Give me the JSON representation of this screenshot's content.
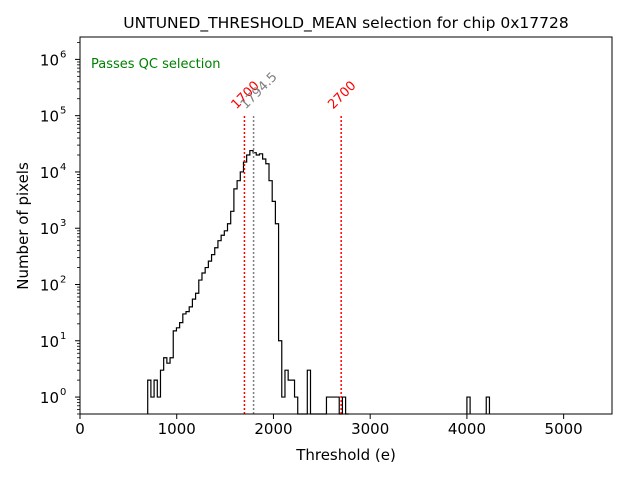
{
  "chart_data": {
    "type": "histogram",
    "title": "UNTUNED_THRESHOLD_MEAN selection for chip 0x17728",
    "xlabel": "Threshold (e)",
    "ylabel": "Number of pixels",
    "xlim": [
      0,
      5500
    ],
    "ylim": [
      0.5,
      2500000
    ],
    "yscale": "log",
    "xticks": [
      0,
      1000,
      2000,
      3000,
      4000,
      5000
    ],
    "xtick_labels": [
      "0",
      "1000",
      "2000",
      "3000",
      "4000",
      "5000"
    ],
    "yticks": [
      1,
      10,
      100,
      1000,
      10000,
      100000,
      1000000
    ],
    "ytick_labels": [
      {
        "base": "10",
        "exp": "0"
      },
      {
        "base": "10",
        "exp": "1"
      },
      {
        "base": "10",
        "exp": "2"
      },
      {
        "base": "10",
        "exp": "3"
      },
      {
        "base": "10",
        "exp": "4"
      },
      {
        "base": "10",
        "exp": "5"
      },
      {
        "base": "10",
        "exp": "6"
      }
    ],
    "annotation": {
      "text": "Passes QC selection",
      "color": "#008000"
    },
    "histogram": {
      "bin_width": 33,
      "color": "#000000",
      "bins": [
        [
          700,
          2
        ],
        [
          733,
          1
        ],
        [
          766,
          2
        ],
        [
          799,
          1
        ],
        [
          832,
          3
        ],
        [
          865,
          5
        ],
        [
          898,
          4
        ],
        [
          931,
          5
        ],
        [
          964,
          15
        ],
        [
          997,
          17
        ],
        [
          1030,
          21
        ],
        [
          1063,
          30
        ],
        [
          1096,
          33
        ],
        [
          1129,
          40
        ],
        [
          1162,
          55
        ],
        [
          1195,
          70
        ],
        [
          1228,
          120
        ],
        [
          1261,
          160
        ],
        [
          1294,
          200
        ],
        [
          1327,
          260
        ],
        [
          1360,
          340
        ],
        [
          1393,
          450
        ],
        [
          1426,
          600
        ],
        [
          1459,
          750
        ],
        [
          1492,
          900
        ],
        [
          1525,
          1200
        ],
        [
          1558,
          2000
        ],
        [
          1591,
          5000
        ],
        [
          1624,
          7000
        ],
        [
          1657,
          10000
        ],
        [
          1690,
          15000
        ],
        [
          1723,
          20000
        ],
        [
          1756,
          24000
        ],
        [
          1789,
          22000
        ],
        [
          1822,
          20000
        ],
        [
          1855,
          21000
        ],
        [
          1888,
          17000
        ],
        [
          1921,
          14000
        ],
        [
          1954,
          7000
        ],
        [
          1987,
          3000
        ],
        [
          2020,
          1200
        ],
        [
          2053,
          10
        ],
        [
          2086,
          1
        ],
        [
          2119,
          3
        ],
        [
          2152,
          2
        ],
        [
          2185,
          2
        ],
        [
          2218,
          1
        ],
        [
          2251,
          0.5
        ],
        [
          2284,
          0.5
        ],
        [
          2317,
          0.5
        ],
        [
          2350,
          3
        ],
        [
          2383,
          0.5
        ],
        [
          2416,
          0.5
        ],
        [
          2449,
          0.5
        ],
        [
          2482,
          0.5
        ],
        [
          2515,
          0.5
        ],
        [
          2548,
          1
        ],
        [
          2581,
          1
        ],
        [
          2614,
          1
        ],
        [
          2647,
          1
        ],
        [
          2680,
          0.5
        ],
        [
          2713,
          1
        ],
        [
          2746,
          0.5
        ],
        [
          4000,
          1
        ],
        [
          4200,
          1
        ]
      ]
    },
    "vlines": [
      {
        "x": 1700,
        "label": "1700",
        "color": "#ff0000"
      },
      {
        "x": 1794.5,
        "label": "1794.5",
        "color": "#808080"
      },
      {
        "x": 2700,
        "label": "2700",
        "color": "#ff0000"
      }
    ]
  }
}
